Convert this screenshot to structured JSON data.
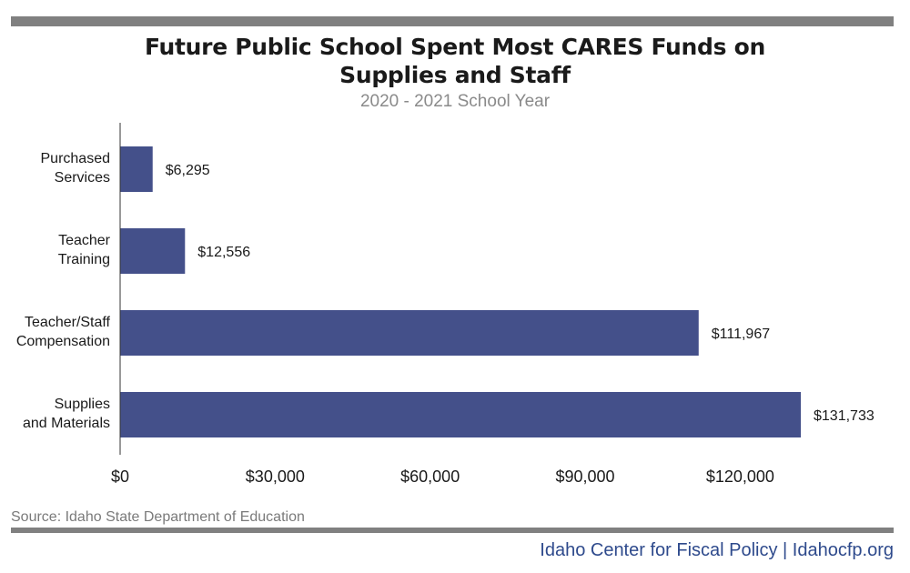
{
  "header": {
    "title_line1": "Future Public School Spent Most CARES Funds on",
    "title_line2": "Supplies and Staff",
    "subtitle": "2020 - 2021 School Year"
  },
  "footer": {
    "source": "Source: Idaho State Department of Education",
    "credit": "Idaho Center for Fiscal Policy | Idahocfp.org"
  },
  "colors": {
    "bar": "#44508a",
    "rule": "#808080",
    "credit": "#2e4a8c"
  },
  "chart_data": {
    "type": "bar",
    "orientation": "horizontal",
    "categories": [
      [
        "Purchased",
        "Services"
      ],
      [
        "Teacher",
        "Training"
      ],
      [
        "Teacher/Staff",
        "Compensation"
      ],
      [
        "Supplies",
        "and Materials"
      ]
    ],
    "values": [
      6295,
      12556,
      111967,
      131733
    ],
    "value_labels": [
      "$6,295",
      "$12,556",
      "$111,967",
      "$131,733"
    ],
    "xlim": [
      0,
      150000
    ],
    "x_ticks": [
      0,
      30000,
      60000,
      90000,
      120000
    ],
    "x_tick_labels": [
      "$0",
      "$30,000",
      "$60,000",
      "$90,000",
      "$120,000"
    ],
    "grid": false,
    "legend": "none"
  }
}
